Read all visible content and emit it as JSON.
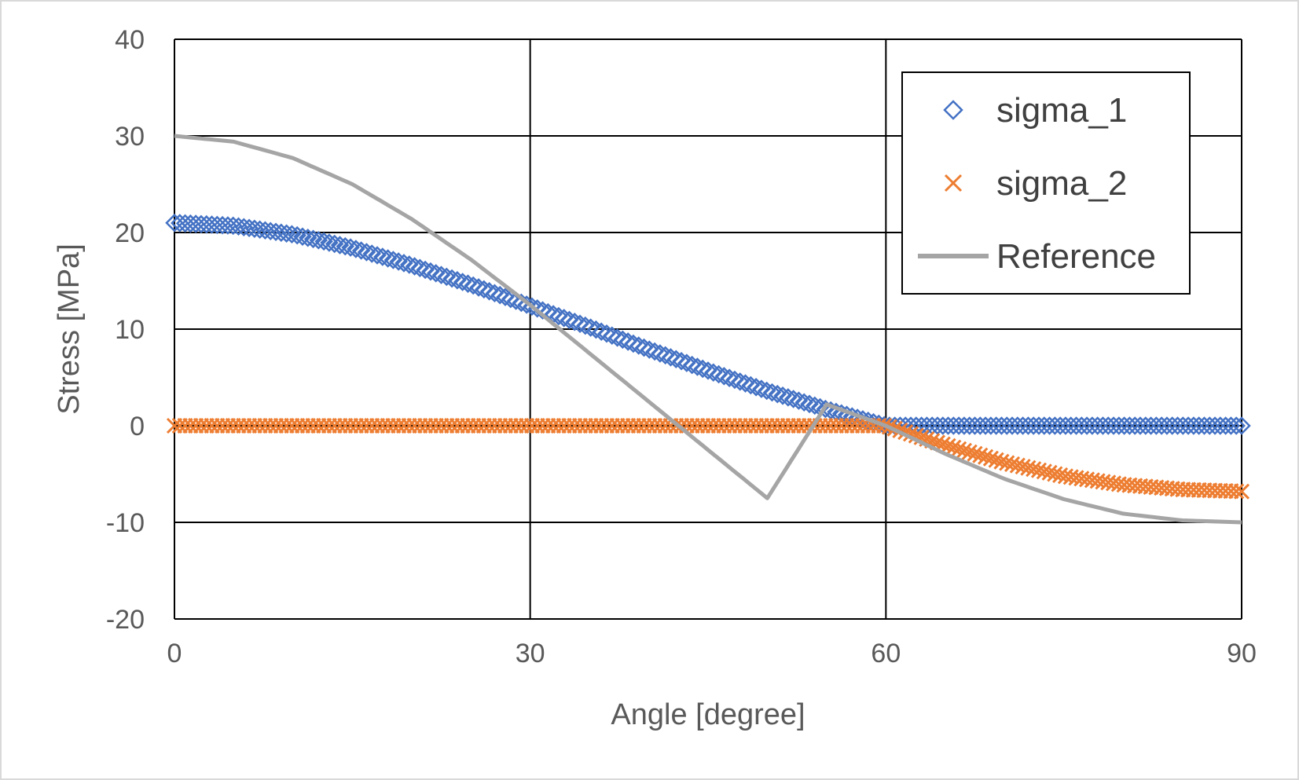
{
  "chart_data": {
    "type": "scatter",
    "title": "",
    "xlabel": "Angle [degree]",
    "ylabel": "Stress [MPa]",
    "xlim": [
      0,
      90
    ],
    "ylim": [
      -20,
      40
    ],
    "x_ticks": [
      0,
      30,
      60,
      90
    ],
    "y_ticks": [
      -20,
      -10,
      0,
      10,
      20,
      30,
      40
    ],
    "grid": true,
    "legend_position": "top-right",
    "series": [
      {
        "name": "sigma_1",
        "marker": "diamond",
        "color": "#4472C4",
        "x": [
          0,
          5,
          10,
          15,
          20,
          25,
          30,
          35,
          40,
          45,
          50,
          55,
          60,
          65,
          70,
          75,
          80,
          85,
          90
        ],
        "y": [
          21.0,
          20.7,
          19.8,
          18.4,
          16.6,
          14.6,
          12.4,
          10.2,
          7.9,
          5.7,
          3.6,
          1.7,
          0.0,
          0.0,
          0.0,
          0.0,
          0.0,
          0.0,
          0.0
        ]
      },
      {
        "name": "sigma_2",
        "marker": "x",
        "color": "#ED7D31",
        "x": [
          0,
          5,
          10,
          15,
          20,
          25,
          30,
          35,
          40,
          45,
          50,
          55,
          60,
          65,
          70,
          75,
          80,
          85,
          90
        ],
        "y": [
          0,
          0,
          0,
          0,
          0,
          0,
          0,
          0,
          0,
          0,
          0,
          0,
          0.0,
          -2.0,
          -3.8,
          -5.2,
          -6.1,
          -6.6,
          -6.8
        ]
      },
      {
        "name": "Reference",
        "marker": "line",
        "color": "#A5A5A5",
        "x": [
          0,
          5,
          10,
          15,
          20,
          25,
          30,
          35,
          40,
          45,
          50,
          55,
          60,
          65,
          70,
          75,
          80,
          85,
          90
        ],
        "y": [
          30.0,
          29.4,
          27.7,
          25.0,
          21.4,
          17.2,
          12.5,
          7.5,
          2.5,
          -2.5,
          -7.5,
          2.2,
          0.0,
          -2.9,
          -5.5,
          -7.6,
          -9.1,
          -9.8,
          -10.0
        ]
      }
    ]
  }
}
